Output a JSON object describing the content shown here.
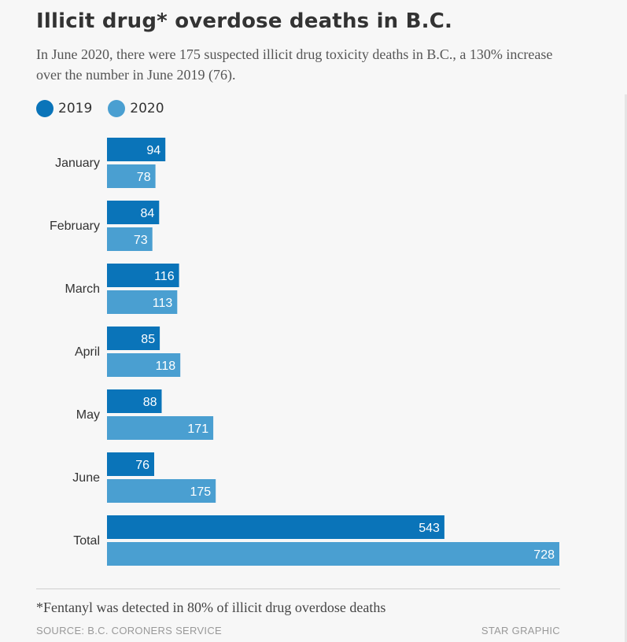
{
  "header": {
    "title": "Illicit drug* overdose deaths in B.C.",
    "subtitle": "In June 2020, there were 175 suspected illicit drug toxicity deaths in B.C., a 130% increase over the number in June 2019 (76)."
  },
  "legend": [
    {
      "label": "2019",
      "color": "#0a74b9"
    },
    {
      "label": "2020",
      "color": "#4a9fd1"
    }
  ],
  "chart_data": {
    "type": "bar",
    "orientation": "horizontal",
    "title": "Illicit drug* overdose deaths in B.C.",
    "categories": [
      "January",
      "February",
      "March",
      "April",
      "May",
      "June",
      "Total"
    ],
    "series": [
      {
        "name": "2019",
        "color": "#0a74b9",
        "values": [
          94,
          84,
          116,
          85,
          88,
          76,
          543
        ]
      },
      {
        "name": "2020",
        "color": "#4a9fd1",
        "values": [
          78,
          73,
          113,
          118,
          171,
          175,
          728
        ]
      }
    ],
    "xlabel": "",
    "ylabel": "",
    "xlim": [
      0,
      728
    ],
    "grid": false,
    "legend_position": "top-left",
    "data_labels": true
  },
  "footer": {
    "footnote": "*Fentanyl was detected in 80% of illicit drug overdose deaths",
    "source": "SOURCE: B.C. CORONERS SERVICE",
    "credit": "STAR GRAPHIC"
  }
}
